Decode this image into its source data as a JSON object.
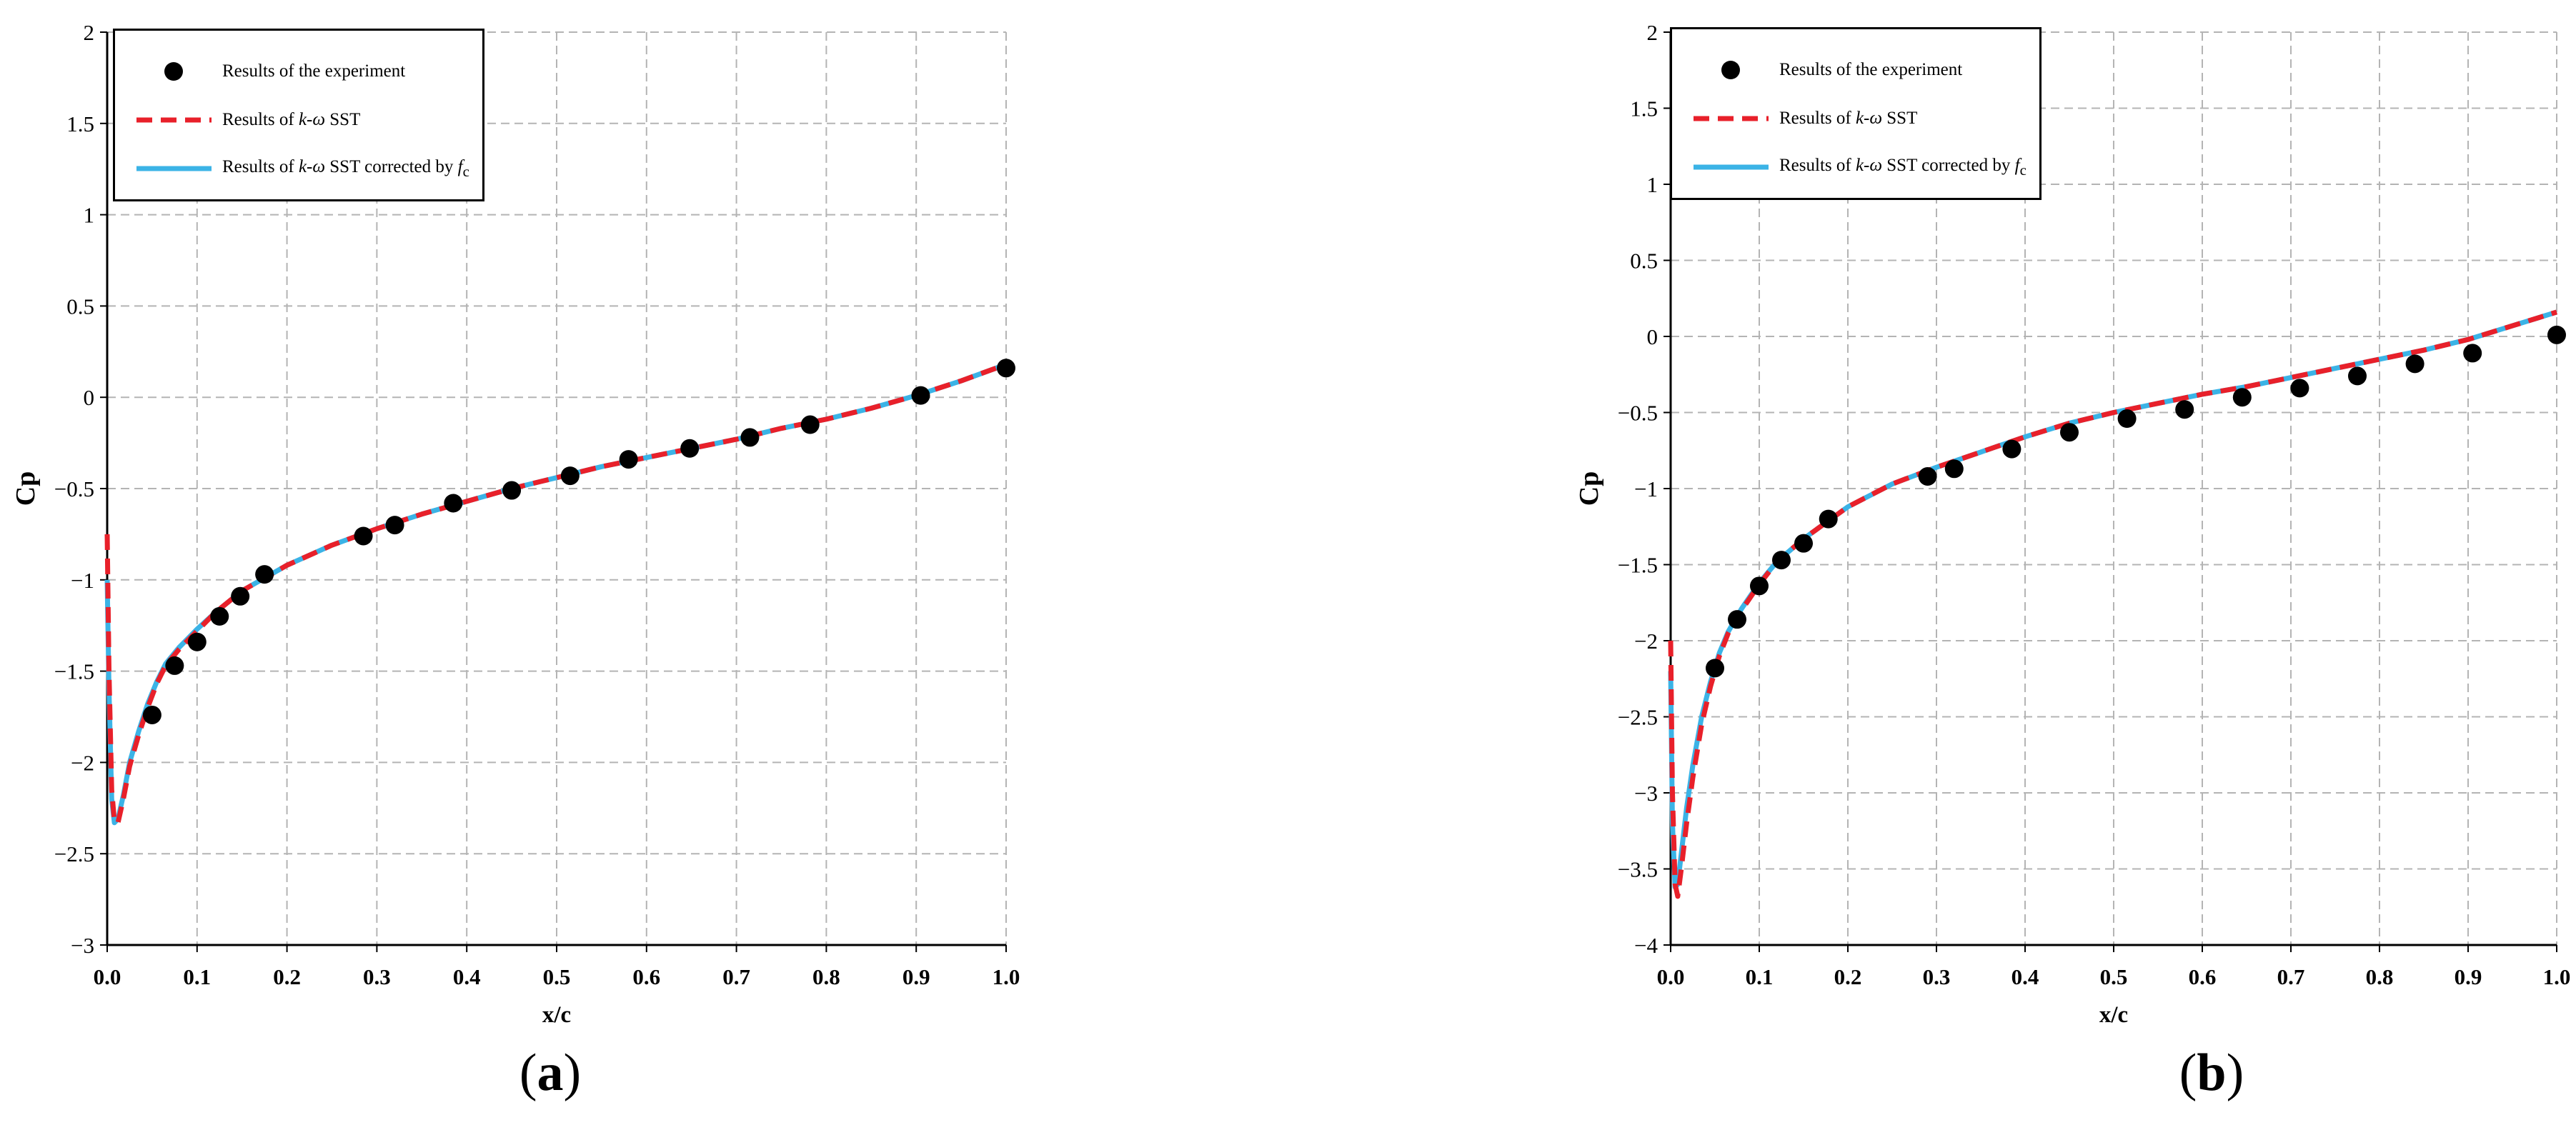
{
  "figure": {
    "panels": [
      {
        "caption": "a"
      },
      {
        "caption": "b"
      }
    ],
    "legend": {
      "experiment": "Results of the experiment",
      "kw_prefix": "Results of ",
      "kw_model": "k-ω",
      "kw_suffix": " SST",
      "kwc_prefix": "Results of ",
      "kwc_model": "k-ω",
      "kwc_mid": " SST corrected by ",
      "kwc_fc": "f",
      "kwc_fc_sub": "c"
    }
  },
  "colors": {
    "experiment": "#000000",
    "kw_sst": "#e8202a",
    "kw_sst_corrected": "#3bb3e6",
    "grid": "#b4b4b4"
  },
  "chart_data": [
    {
      "type": "line",
      "xlabel": "x/c",
      "ylabel": "Cp",
      "xlim": [
        0,
        1
      ],
      "ylim": [
        -3,
        2
      ],
      "xticks": [
        0.0,
        0.1,
        0.2,
        0.3,
        0.4,
        0.5,
        0.6,
        0.7,
        0.8,
        0.9,
        1.0
      ],
      "xtick_labels": [
        "0.0",
        "0.1",
        "0.2",
        "0.3",
        "0.4",
        "0.5",
        "0.6",
        "0.7",
        "0.8",
        "0.9",
        "1.0"
      ],
      "yticks": [
        -3,
        -2.5,
        -2,
        -1.5,
        -1,
        -0.5,
        0,
        0.5,
        1,
        1.5,
        2
      ],
      "ytick_labels": [
        "−3",
        "−2.5",
        "−2",
        "−1.5",
        "−1",
        "−0.5",
        "0",
        "0.5",
        "1",
        "1.5",
        "2"
      ],
      "grid": true,
      "legend_position": "top-left",
      "series": [
        {
          "name": "Results of the experiment",
          "style": "scatter",
          "x": [
            0.05,
            0.075,
            0.1,
            0.125,
            0.148,
            0.175,
            0.285,
            0.32,
            0.385,
            0.45,
            0.515,
            0.58,
            0.648,
            0.715,
            0.782,
            0.905,
            1.0
          ],
          "y": [
            -1.74,
            -1.47,
            -1.34,
            -1.2,
            -1.09,
            -0.97,
            -0.76,
            -0.7,
            -0.58,
            -0.51,
            -0.43,
            -0.34,
            -0.28,
            -0.22,
            -0.15,
            0.01,
            0.16
          ]
        },
        {
          "name": "Results of k-ω SST",
          "style": "dashed",
          "x": [
            0.0,
            0.002,
            0.005,
            0.008,
            0.012,
            0.018,
            0.025,
            0.035,
            0.045,
            0.055,
            0.065,
            0.08,
            0.1,
            0.12,
            0.15,
            0.2,
            0.25,
            0.3,
            0.35,
            0.4,
            0.45,
            0.5,
            0.55,
            0.6,
            0.65,
            0.7,
            0.75,
            0.8,
            0.85,
            0.9,
            0.95,
            1.0
          ],
          "y": [
            -0.75,
            -1.5,
            -2.15,
            -2.32,
            -2.33,
            -2.2,
            -2.02,
            -1.85,
            -1.7,
            -1.57,
            -1.47,
            -1.38,
            -1.28,
            -1.18,
            -1.06,
            -0.92,
            -0.81,
            -0.72,
            -0.64,
            -0.57,
            -0.5,
            -0.44,
            -0.38,
            -0.33,
            -0.28,
            -0.23,
            -0.17,
            -0.12,
            -0.06,
            0.01,
            0.09,
            0.18
          ]
        },
        {
          "name": "Results of k-ω SST corrected by fc",
          "style": "solid",
          "x": [
            0.0,
            0.002,
            0.005,
            0.008,
            0.012,
            0.018,
            0.025,
            0.035,
            0.045,
            0.055,
            0.065,
            0.08,
            0.1,
            0.12,
            0.15,
            0.2,
            0.25,
            0.3,
            0.35,
            0.4,
            0.45,
            0.5,
            0.55,
            0.6,
            0.65,
            0.7,
            0.75,
            0.8,
            0.85,
            0.9,
            0.95,
            1.0
          ],
          "y": [
            -1.0,
            -1.6,
            -2.2,
            -2.33,
            -2.31,
            -2.18,
            -2.0,
            -1.83,
            -1.68,
            -1.56,
            -1.46,
            -1.37,
            -1.27,
            -1.18,
            -1.06,
            -0.92,
            -0.81,
            -0.72,
            -0.64,
            -0.57,
            -0.5,
            -0.44,
            -0.38,
            -0.33,
            -0.28,
            -0.23,
            -0.17,
            -0.12,
            -0.06,
            0.01,
            0.09,
            0.18
          ]
        }
      ]
    },
    {
      "type": "line",
      "xlabel": "x/c",
      "ylabel": "Cp",
      "xlim": [
        0,
        1
      ],
      "ylim": [
        -4,
        2
      ],
      "xticks": [
        0.0,
        0.1,
        0.2,
        0.3,
        0.4,
        0.5,
        0.6,
        0.7,
        0.8,
        0.9,
        1.0
      ],
      "xtick_labels": [
        "0.0",
        "0.1",
        "0.2",
        "0.3",
        "0.4",
        "0.5",
        "0.6",
        "0.7",
        "0.8",
        "0.9",
        "1.0"
      ],
      "yticks": [
        -4,
        -3.5,
        -3,
        -2.5,
        -2,
        -1.5,
        -1,
        -0.5,
        0,
        0.5,
        1,
        1.5,
        2
      ],
      "ytick_labels": [
        "−4",
        "−3.5",
        "−3",
        "−2.5",
        "−2",
        "−1.5",
        "−1",
        "−0.5",
        "0",
        "0.5",
        "1",
        "1.5",
        "2"
      ],
      "grid": true,
      "legend_position": "top-left",
      "series": [
        {
          "name": "Results of the experiment",
          "style": "scatter",
          "x": [
            0.05,
            0.075,
            0.1,
            0.125,
            0.15,
            0.178,
            0.29,
            0.32,
            0.385,
            0.45,
            0.515,
            0.58,
            0.645,
            0.71,
            0.775,
            0.84,
            0.905,
            1.0
          ],
          "y": [
            -2.18,
            -1.86,
            -1.64,
            -1.47,
            -1.36,
            -1.2,
            -0.92,
            -0.87,
            -0.74,
            -0.63,
            -0.54,
            -0.48,
            -0.4,
            -0.34,
            -0.26,
            -0.18,
            -0.11,
            0.01
          ]
        },
        {
          "name": "Results of k-ω SST",
          "style": "dashed",
          "x": [
            0.0,
            0.002,
            0.005,
            0.008,
            0.012,
            0.018,
            0.025,
            0.035,
            0.045,
            0.055,
            0.065,
            0.08,
            0.1,
            0.12,
            0.15,
            0.2,
            0.25,
            0.3,
            0.35,
            0.4,
            0.45,
            0.5,
            0.55,
            0.6,
            0.65,
            0.7,
            0.75,
            0.8,
            0.85,
            0.9,
            0.95,
            1.0
          ],
          "y": [
            -2.0,
            -3.0,
            -3.6,
            -3.68,
            -3.5,
            -3.2,
            -2.9,
            -2.55,
            -2.3,
            -2.1,
            -1.95,
            -1.8,
            -1.63,
            -1.48,
            -1.33,
            -1.12,
            -0.97,
            -0.86,
            -0.76,
            -0.66,
            -0.57,
            -0.5,
            -0.44,
            -0.38,
            -0.33,
            -0.27,
            -0.21,
            -0.15,
            -0.09,
            -0.02,
            0.07,
            0.16
          ]
        },
        {
          "name": "Results of k-ω SST corrected by fc",
          "style": "solid",
          "x": [
            0.0,
            0.002,
            0.005,
            0.008,
            0.012,
            0.018,
            0.025,
            0.035,
            0.045,
            0.055,
            0.065,
            0.08,
            0.1,
            0.12,
            0.15,
            0.2,
            0.25,
            0.3,
            0.35,
            0.4,
            0.45,
            0.5,
            0.55,
            0.6,
            0.65,
            0.7,
            0.75,
            0.8,
            0.85,
            0.9,
            0.95,
            1.0
          ],
          "y": [
            -2.2,
            -3.2,
            -3.62,
            -3.6,
            -3.4,
            -3.1,
            -2.82,
            -2.5,
            -2.27,
            -2.08,
            -1.94,
            -1.79,
            -1.62,
            -1.48,
            -1.33,
            -1.12,
            -0.97,
            -0.86,
            -0.76,
            -0.66,
            -0.57,
            -0.5,
            -0.44,
            -0.38,
            -0.33,
            -0.27,
            -0.21,
            -0.15,
            -0.09,
            -0.02,
            0.07,
            0.16
          ]
        }
      ]
    }
  ]
}
